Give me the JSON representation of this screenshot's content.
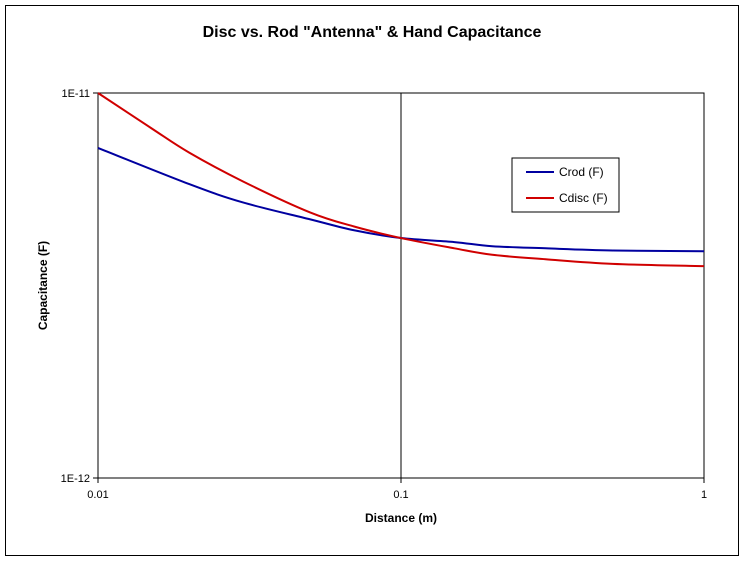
{
  "chart_data": {
    "type": "line",
    "title": "Disc vs. Rod \"Antenna\" & Hand Capacitance",
    "xlabel": "Distance (m)",
    "ylabel": "Capacitance (F)",
    "x_scale": "log",
    "y_scale": "log",
    "xlim": [
      0.01,
      1
    ],
    "ylim": [
      1e-12,
      1e-11
    ],
    "x_ticks": [
      0.01,
      0.1,
      1
    ],
    "x_tick_labels": [
      "0.01",
      "0.1",
      "1"
    ],
    "y_ticks": [
      1e-12,
      1e-11
    ],
    "y_tick_labels": [
      "1E-12",
      "1E-11"
    ],
    "grid": "vertical line at x=0.1",
    "legend_position": "right",
    "series": [
      {
        "name": "Crod (F)",
        "color": "#0000a0",
        "x": [
          0.01,
          0.02,
          0.03,
          0.05,
          0.07,
          0.1,
          0.15,
          0.2,
          0.3,
          0.5,
          1
        ],
        "y": [
          7.2e-12,
          5.8e-12,
          5.2e-12,
          4.7e-12,
          4.4e-12,
          4.2e-12,
          4.1e-12,
          4e-12,
          3.95e-12,
          3.9e-12,
          3.88e-12
        ]
      },
      {
        "name": "Cdisc (F)",
        "color": "#d00000",
        "x": [
          0.01,
          0.015,
          0.02,
          0.03,
          0.05,
          0.07,
          0.1,
          0.15,
          0.2,
          0.3,
          0.5,
          1
        ],
        "y": [
          1e-11,
          8.1e-12,
          7e-12,
          5.9e-12,
          4.9e-12,
          4.5e-12,
          4.2e-12,
          3.95e-12,
          3.8e-12,
          3.7e-12,
          3.6e-12,
          3.55e-12
        ]
      }
    ]
  }
}
